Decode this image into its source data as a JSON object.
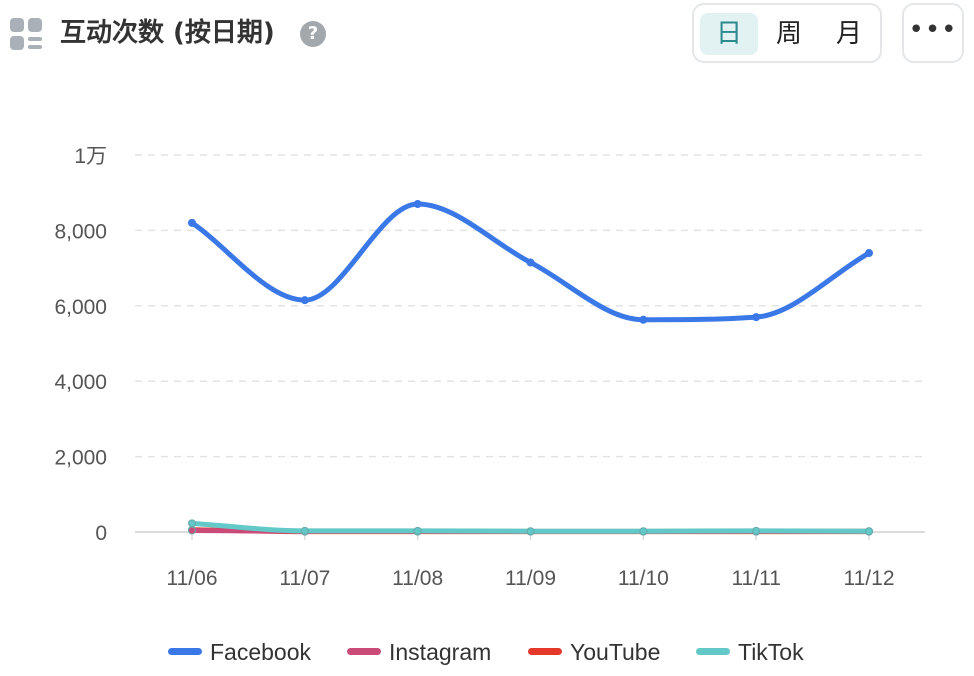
{
  "header": {
    "title": "互动次数 (按日期)",
    "help_icon": "question-circle-icon",
    "widget_icon": "dashboard-widget-icon",
    "periods": [
      "日",
      "周",
      "月"
    ],
    "active_period": "日",
    "more_label": "•••"
  },
  "chart_data": {
    "type": "line",
    "categories": [
      "11/06",
      "11/07",
      "11/08",
      "11/09",
      "11/10",
      "11/11",
      "11/12"
    ],
    "y_ticks": [
      "0",
      "2,000",
      "4,000",
      "6,000",
      "8,000",
      "1万"
    ],
    "ylim": [
      0,
      10000
    ],
    "grid": true,
    "legend_position": "bottom",
    "series": [
      {
        "name": "Facebook",
        "color": "#3a78e7",
        "values": [
          8200,
          6150,
          8700,
          7150,
          5630,
          5700,
          7400
        ]
      },
      {
        "name": "Instagram",
        "color": "#cc4a78",
        "values": [
          40,
          20,
          20,
          15,
          15,
          20,
          20
        ]
      },
      {
        "name": "YouTube",
        "color": "#e4382b",
        "values": [
          60,
          10,
          10,
          10,
          10,
          10,
          10
        ]
      },
      {
        "name": "TikTok",
        "color": "#62c8c8",
        "values": [
          230,
          30,
          30,
          20,
          20,
          30,
          20
        ]
      }
    ]
  }
}
